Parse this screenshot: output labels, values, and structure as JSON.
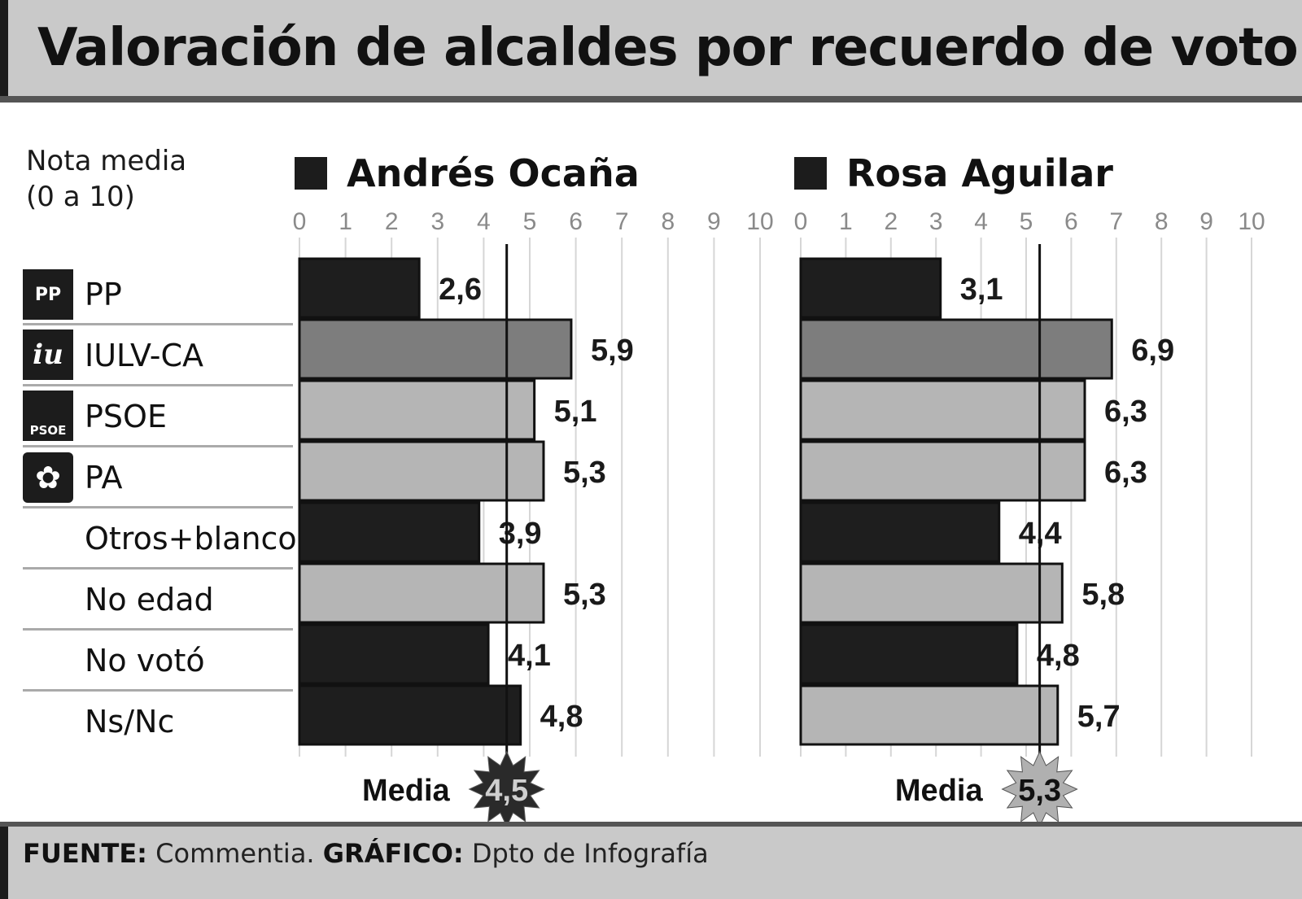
{
  "title": "Valoración de alcaldes por recuerdo de voto",
  "subtitle_lines": [
    "Nota media",
    "(0 a 10)"
  ],
  "source": {
    "fuente_label": "FUENTE:",
    "fuente_value": "Commentia.",
    "grafico_label": "GRÁFICO:",
    "grafico_value": "Dpto de Infografía"
  },
  "logos": {
    "PP": "PP",
    "IULV-CA": "iu",
    "PSOE": "PSOE",
    "PA": "✿"
  },
  "colors": {
    "dark_bar": "#1e1e1e",
    "grey_bar": "#b5b5b5",
    "mid_bar": "#7d7d7d",
    "title_band": "#c9c9c9",
    "media_star_left": "#2a2a2a",
    "media_star_right": "#b0b0b0"
  },
  "chart_data": [
    {
      "type": "bar",
      "orientation": "horizontal",
      "title": "Andrés Ocaña",
      "xlim": [
        0,
        10
      ],
      "ticks": [
        "0",
        "1",
        "2",
        "3",
        "4",
        "5",
        "6",
        "7",
        "8",
        "9",
        "10"
      ],
      "categories": [
        "PP",
        "IULV-CA",
        "PSOE",
        "PA",
        "Otros+blanco",
        "No edad",
        "No votó",
        "Ns/Nc"
      ],
      "values": [
        2.6,
        5.9,
        5.1,
        5.3,
        3.9,
        5.3,
        4.1,
        4.8
      ],
      "value_labels": [
        "2,6",
        "5,9",
        "5,1",
        "5,3",
        "3,9",
        "5,3",
        "4,1",
        "4,8"
      ],
      "bar_shades": [
        "dark",
        "mid",
        "grey",
        "grey",
        "dark",
        "grey",
        "dark",
        "dark"
      ],
      "mean": 4.5,
      "mean_label": "Media",
      "mean_value_label": "4,5",
      "grid": true
    },
    {
      "type": "bar",
      "orientation": "horizontal",
      "title": "Rosa Aguilar",
      "xlim": [
        0,
        10
      ],
      "ticks": [
        "0",
        "1",
        "2",
        "3",
        "4",
        "5",
        "6",
        "7",
        "8",
        "9",
        "10"
      ],
      "categories": [
        "PP",
        "IULV-CA",
        "PSOE",
        "PA",
        "Otros+blanco",
        "No edad",
        "No votó",
        "Ns/Nc"
      ],
      "values": [
        3.1,
        6.9,
        6.3,
        6.3,
        4.4,
        5.8,
        4.8,
        5.7
      ],
      "value_labels": [
        "3,1",
        "6,9",
        "6,3",
        "6,3",
        "4,4",
        "5,8",
        "4,8",
        "5,7"
      ],
      "bar_shades": [
        "dark",
        "mid",
        "grey",
        "grey",
        "dark",
        "grey",
        "dark",
        "grey"
      ],
      "mean": 5.3,
      "mean_label": "Media",
      "mean_value_label": "5,3",
      "grid": true
    }
  ]
}
